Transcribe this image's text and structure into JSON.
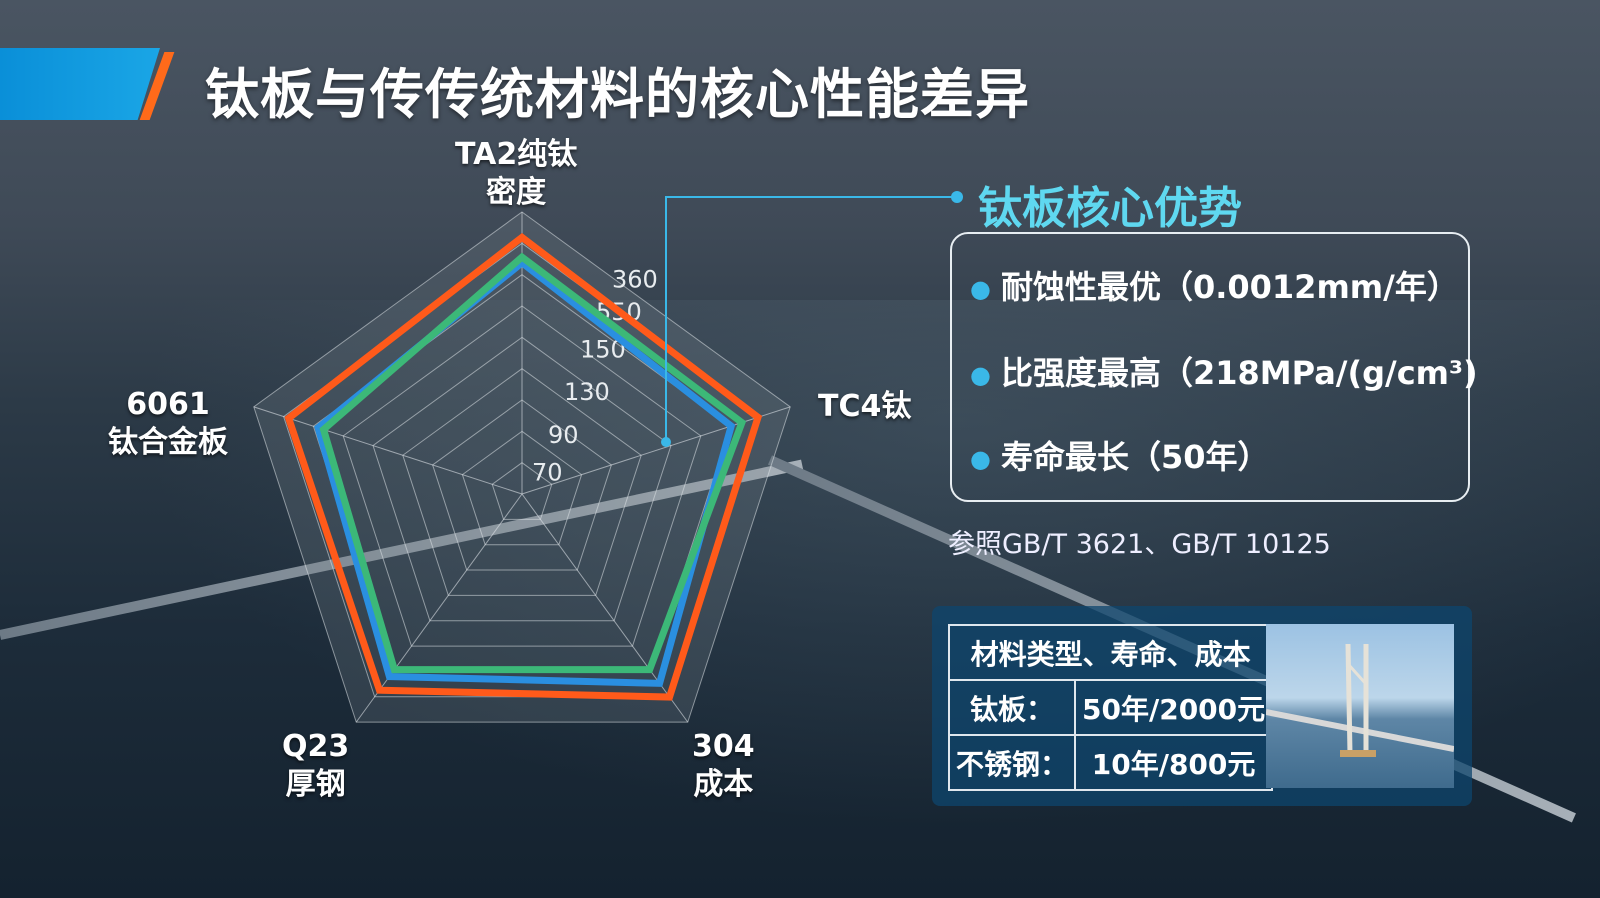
{
  "title": "钛板与传传统材料的核心性能差异",
  "chart_data": {
    "type": "radar",
    "title": "",
    "axes": [
      "TA2纯钛\n密度",
      "TC4钛",
      "304\n成本",
      "Q23\n厚钢",
      "6061\n钛合金板"
    ],
    "tick_labels": [
      "70",
      "90",
      "130",
      "150",
      "550",
      "360"
    ],
    "value_scale": "fraction of outer ring (no readable units)",
    "grid": true,
    "legend": "none",
    "series": [
      {
        "color": "#ff5a1a",
        "values": [
          0.91,
          0.88,
          0.89,
          0.86,
          0.87
        ]
      },
      {
        "color": "#3cb878",
        "values": [
          0.84,
          0.82,
          0.77,
          0.77,
          0.74
        ]
      },
      {
        "color": "#2a8fe0",
        "values": [
          0.82,
          0.78,
          0.83,
          0.8,
          0.76
        ]
      }
    ]
  },
  "advantages": {
    "title": "钛板核心优势",
    "items": [
      "耐蚀性最优（0.0012mm/年）",
      "比强度最高（218MPa/(g/cm³)",
      "寿命最长（50年）"
    ]
  },
  "reference": "参照GB/T 3621、GB/T 10125",
  "table": {
    "header": "材料类型、寿命、成本",
    "rows": [
      [
        "钛板：",
        "50年/2000元"
      ],
      [
        "不锈钢：",
        "10年/800元"
      ]
    ]
  },
  "colors": {
    "accent_blue": "#1aa6e6",
    "accent_orange": "#ff6a1a",
    "highlight_cyan": "#5fd8f0"
  }
}
